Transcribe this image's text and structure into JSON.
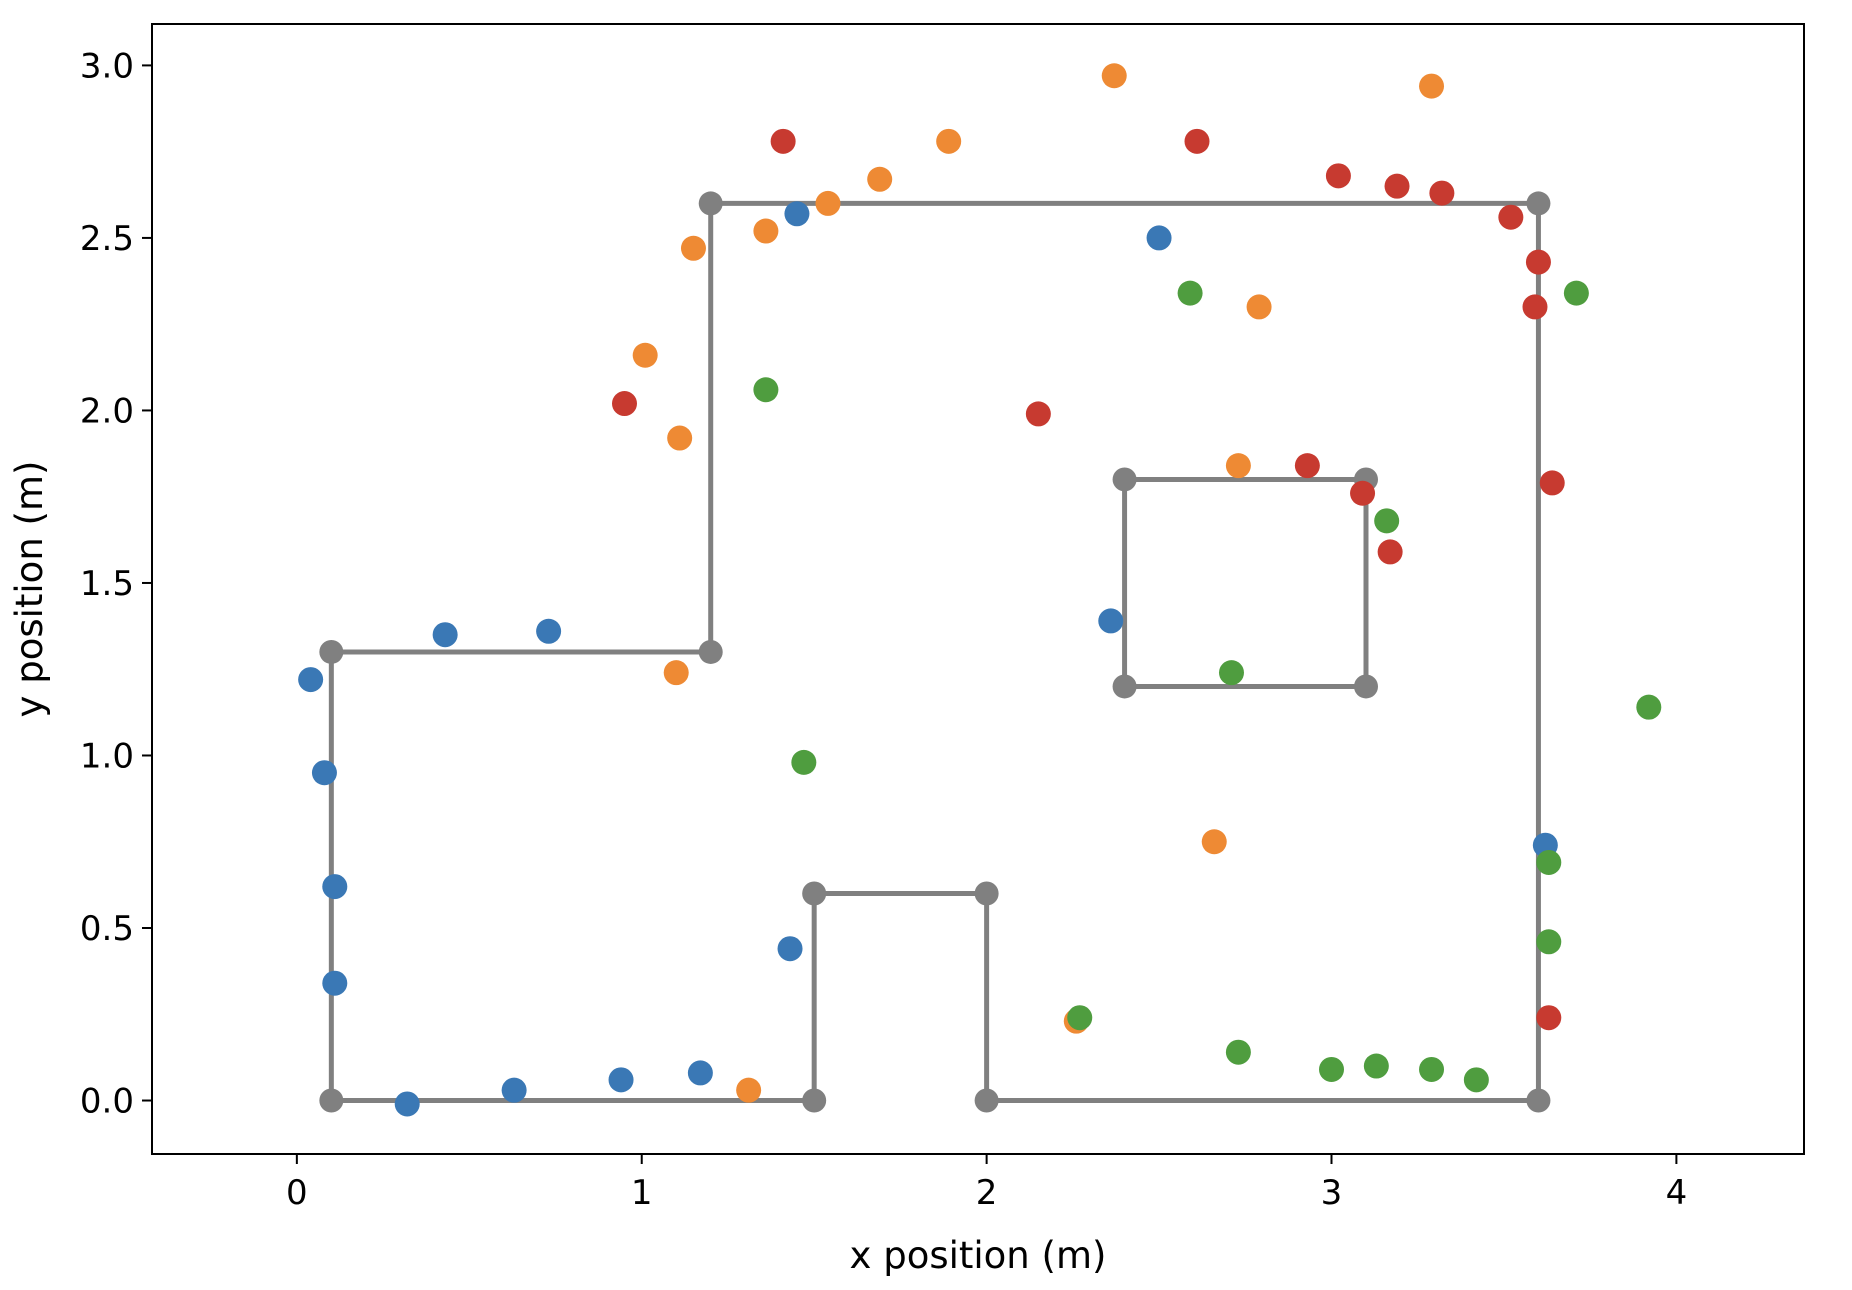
{
  "chart_data": {
    "type": "scatter",
    "xlabel": "x position (m)",
    "ylabel": "y position (m)",
    "xlim": [
      -0.42,
      4.37
    ],
    "ylim": [
      -0.155,
      3.12
    ],
    "xticks": [
      0,
      1,
      2,
      3,
      4
    ],
    "xtick_labels": [
      "0",
      "1",
      "2",
      "3",
      "4"
    ],
    "yticks": [
      0.0,
      0.5,
      1.0,
      1.5,
      2.0,
      2.5,
      3.0
    ],
    "ytick_labels": [
      "0.0",
      "0.5",
      "1.0",
      "1.5",
      "2.0",
      "2.5",
      "3.0"
    ],
    "grid": false,
    "legend": "none",
    "walls": {
      "color": "#808080",
      "polylines": [
        [
          [
            0.1,
            0.0
          ],
          [
            1.5,
            0.0
          ],
          [
            1.5,
            0.6
          ],
          [
            2.0,
            0.6
          ],
          [
            2.0,
            0.0
          ],
          [
            3.6,
            0.0
          ],
          [
            3.6,
            2.6
          ],
          [
            1.2,
            2.6
          ],
          [
            1.2,
            1.3
          ],
          [
            0.1,
            1.3
          ],
          [
            0.1,
            0.0
          ]
        ],
        [
          [
            2.4,
            1.2
          ],
          [
            3.1,
            1.2
          ],
          [
            3.1,
            1.8
          ],
          [
            2.4,
            1.8
          ],
          [
            2.4,
            1.2
          ]
        ]
      ]
    },
    "series": [
      {
        "color": "#3a78b5",
        "points": [
          [
            0.04,
            1.22
          ],
          [
            0.08,
            0.95
          ],
          [
            0.11,
            0.62
          ],
          [
            0.11,
            0.34
          ],
          [
            0.32,
            -0.01
          ],
          [
            0.63,
            0.03
          ],
          [
            0.94,
            0.06
          ],
          [
            1.17,
            0.08
          ],
          [
            0.43,
            1.35
          ],
          [
            0.73,
            1.36
          ],
          [
            1.43,
            0.44
          ],
          [
            1.45,
            2.57
          ],
          [
            2.5,
            2.5
          ],
          [
            2.36,
            1.39
          ],
          [
            3.62,
            0.74
          ]
        ]
      },
      {
        "color": "#ee8a34",
        "points": [
          [
            1.31,
            0.03
          ],
          [
            1.1,
            1.24
          ],
          [
            1.11,
            1.92
          ],
          [
            1.01,
            2.16
          ],
          [
            1.15,
            2.47
          ],
          [
            1.36,
            2.52
          ],
          [
            1.54,
            2.6
          ],
          [
            1.69,
            2.67
          ],
          [
            1.89,
            2.78
          ],
          [
            2.37,
            2.97
          ],
          [
            2.79,
            2.3
          ],
          [
            2.73,
            1.84
          ],
          [
            2.66,
            0.75
          ],
          [
            2.26,
            0.23
          ],
          [
            3.29,
            2.94
          ]
        ]
      },
      {
        "color": "#4f9d3f",
        "points": [
          [
            1.36,
            2.06
          ],
          [
            1.47,
            0.98
          ],
          [
            2.27,
            0.24
          ],
          [
            2.59,
            2.34
          ],
          [
            2.71,
            1.24
          ],
          [
            2.73,
            0.14
          ],
          [
            3.0,
            0.09
          ],
          [
            3.13,
            0.1
          ],
          [
            3.29,
            0.09
          ],
          [
            3.42,
            0.06
          ],
          [
            3.16,
            1.68
          ],
          [
            3.63,
            0.69
          ],
          [
            3.63,
            0.46
          ],
          [
            3.71,
            2.34
          ],
          [
            3.92,
            1.14
          ]
        ]
      },
      {
        "color": "#c73a30",
        "points": [
          [
            0.95,
            2.02
          ],
          [
            1.41,
            2.78
          ],
          [
            2.15,
            1.99
          ],
          [
            2.61,
            2.78
          ],
          [
            2.93,
            1.84
          ],
          [
            3.02,
            2.68
          ],
          [
            3.09,
            1.76
          ],
          [
            3.17,
            1.59
          ],
          [
            3.19,
            2.65
          ],
          [
            3.32,
            2.63
          ],
          [
            3.52,
            2.56
          ],
          [
            3.6,
            2.43
          ],
          [
            3.59,
            2.3
          ],
          [
            3.64,
            1.79
          ],
          [
            3.63,
            0.24
          ]
        ]
      }
    ]
  }
}
